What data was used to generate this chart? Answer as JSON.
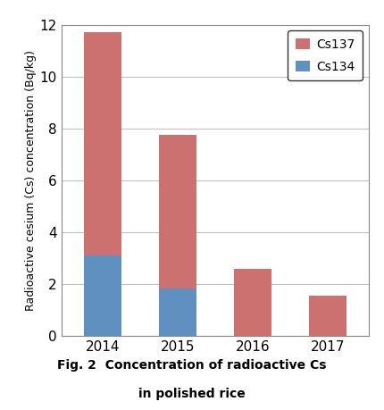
{
  "years": [
    "2014",
    "2015",
    "2016",
    "2017"
  ],
  "cs134": [
    3.1,
    1.85,
    0.0,
    0.0
  ],
  "cs137": [
    8.6,
    5.9,
    2.6,
    1.55
  ],
  "cs137_color": "#CD7070",
  "cs134_color": "#6090C0",
  "ylim": [
    0,
    12
  ],
  "yticks": [
    0,
    2,
    4,
    6,
    8,
    10,
    12
  ],
  "ylabel": "Radioactive cesium (Cs) concentration (Bq/kg)",
  "legend_labels": [
    "Cs137",
    "Cs134"
  ],
  "caption_line1": "Fig. 2  Concentration of radioactive Cs",
  "caption_line2": "in polished rice",
  "background_color": "#ffffff",
  "bar_width": 0.5,
  "grid_color": "#c0c0c0"
}
